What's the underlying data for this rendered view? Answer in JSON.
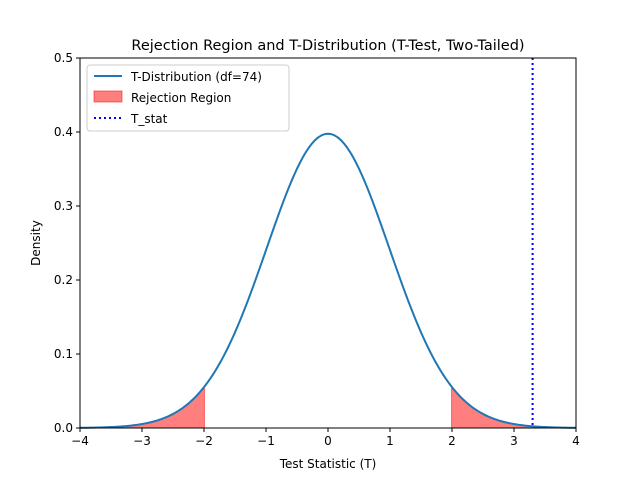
{
  "chart_data": {
    "type": "line",
    "title": "Rejection Region and T-Distribution (T-Test, Two-Tailed)",
    "xlabel": "Test Statistic (T)",
    "ylabel": "Density",
    "xlim": [
      -4,
      4
    ],
    "ylim": [
      0,
      0.5
    ],
    "xticks": [
      -4,
      -3,
      -2,
      -1,
      0,
      1,
      2,
      3,
      4
    ],
    "yticks": [
      0.0,
      0.1,
      0.2,
      0.3,
      0.4,
      0.5
    ],
    "xtick_labels": [
      "−4",
      "−3",
      "−2",
      "−1",
      "0",
      "1",
      "2",
      "3",
      "4"
    ],
    "ytick_labels": [
      "0.0",
      "0.1",
      "0.2",
      "0.3",
      "0.4",
      "0.5"
    ],
    "grid": false,
    "legend_position": "upper-left",
    "df": 74,
    "critical_value": 1.993,
    "t_stat": 3.3,
    "series": [
      {
        "name": "T-Distribution (df=74)",
        "kind": "line",
        "color": "#1f77b4"
      },
      {
        "name": "Rejection Region",
        "kind": "fill",
        "color": "#ff0000",
        "opacity": 0.5
      },
      {
        "name": "T_stat",
        "kind": "vline-dotted",
        "color": "#0000ff"
      }
    ]
  }
}
